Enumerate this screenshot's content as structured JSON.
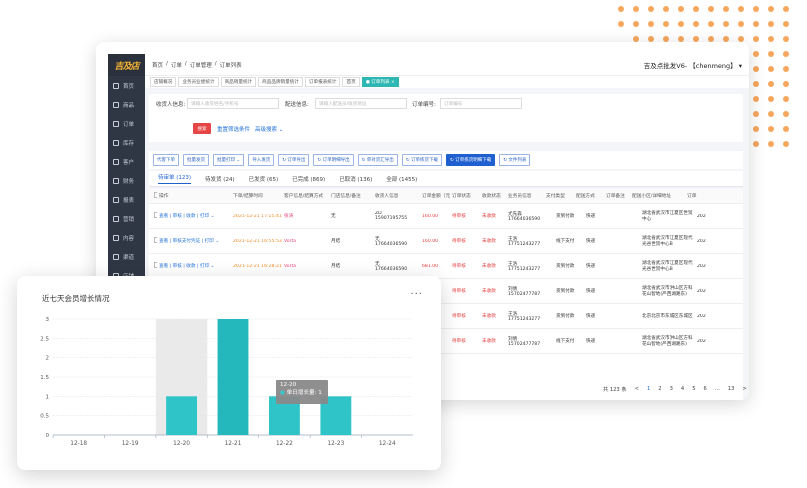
{
  "app": {
    "logo": "吉及店",
    "breadcrumb": [
      "首页",
      "/",
      "订单",
      "/",
      "订单管理",
      "/",
      "订单列表"
    ],
    "user": "吉及点批发V6- 【chenmeng】 ▾"
  },
  "sidebar": [
    "首页",
    "商品",
    "订单",
    "库存",
    "客户",
    "财务",
    "报表",
    "营销",
    "内容",
    "渠道",
    "店铺",
    "系统"
  ],
  "tabs": [
    {
      "label": "店铺概况",
      "on": false
    },
    {
      "label": "业务员业绩统计",
      "on": false
    },
    {
      "label": "商品销量统计",
      "on": false
    },
    {
      "label": "商品品牌销量统计",
      "on": false
    },
    {
      "label": "订单报表统计",
      "on": false
    },
    {
      "label": "首页",
      "on": false
    },
    {
      "label": "● 订单列表 ×",
      "on": true
    }
  ],
  "filters": {
    "label1": "收货人信息:",
    "ph1": "请输入收货姓名/手机号",
    "label2": "配送信息:",
    "ph2": "请输入配送员/收货地址",
    "label3": "订单编号:",
    "ph3": "订单编号",
    "search": "搜索",
    "reset": "重置筛选条件",
    "advanced": "高级搜索 ⌄"
  },
  "toolbar": [
    {
      "label": "代客下单",
      "primary": false
    },
    {
      "label": "批量发货",
      "primary": false
    },
    {
      "label": "批量打印 ⌄",
      "primary": false
    },
    {
      "label": "导入发货",
      "primary": false
    },
    {
      "label": "↻ 订单导出",
      "primary": false
    },
    {
      "label": "↻ 订单明细导出",
      "primary": false
    },
    {
      "label": "↻ 单对货汇导出",
      "primary": false
    },
    {
      "label": "↻ 订单拣货下载",
      "primary": false
    },
    {
      "label": "↻ 订单拣货明细下载",
      "primary": true
    },
    {
      "label": "↻ 文件列表",
      "primary": false
    }
  ],
  "status_tabs": [
    {
      "label": "待审单 (123)",
      "on": true
    },
    {
      "label": "待发货 (24)",
      "on": false
    },
    {
      "label": "已发货 (65)",
      "on": false
    },
    {
      "label": "已完成 (869)",
      "on": false
    },
    {
      "label": "已取消 (136)",
      "on": false
    },
    {
      "label": "全部 (1455)",
      "on": false
    }
  ],
  "table": {
    "headers": [
      "操作",
      "下单/结算时间",
      "客户信息/结算方式",
      "门店信息/备注",
      "收货人信息",
      "订单金额（元）",
      "订单状态",
      "收款状态",
      "业务员信息",
      "支付类型",
      "配送方式",
      "订单备注",
      "配送小区/详细地址",
      "订单"
    ],
    "rows": [
      {
        "ops": "查看 | 审核 | 收款 | 打印 ⌄",
        "time": "2021-12-21 17:15:41",
        "cust": "张涛",
        "pay": "无",
        "rcv": "ZD",
        "phone": "15907195755",
        "amt": "160.00",
        "st": "待审核",
        "pst": "未收款",
        "sales": "尤先森",
        "sp": "17664036590",
        "ptype": "货到付款",
        "ship": "快递",
        "addr": "湖北省武汉市江夏区世贸中心",
        "no": "202"
      },
      {
        "ops": "查看 | 审核支付凭证 | 打印 ⌄",
        "time": "2021-12-21 16:55:53",
        "cust": "Vorta",
        "pay": "月结",
        "rcv": "无",
        "phone": "17664036590",
        "amt": "160.00",
        "st": "待审核",
        "pst": "未收款",
        "sales": "王洛",
        "sp": "17751243277",
        "ptype": "线下支付",
        "ship": "快递",
        "addr": "湖北省武汉市江夏区现代光谷世贸中心B",
        "no": "202"
      },
      {
        "ops": "查看 | 审核 | 收款 | 打印 ⌄",
        "time": "2021-12-21 16:28:21",
        "cust": "Vorta",
        "pay": "月结",
        "rcv": "无",
        "phone": "17664036590",
        "amt": "681.00",
        "st": "待审核",
        "pst": "未收款",
        "sales": "王洛",
        "sp": "17751243277",
        "ptype": "货到付款",
        "ship": "快递",
        "addr": "湖北省武汉市江夏区现代光谷世贸中心B",
        "no": "202"
      },
      {
        "ops": "",
        "time": "",
        "cust": "",
        "pay": "",
        "rcv": "",
        "phone": "",
        "amt": "0.00",
        "st": "待审核",
        "pst": "未收款",
        "sales": "刘倩",
        "sp": "15702477787",
        "ptype": "货到付款",
        "ship": "快递",
        "addr": "湖北省武汉市洪山区方科花山智地(严西湖路东)",
        "no": "202"
      },
      {
        "ops": "",
        "time": "",
        "cust": "",
        "pay": "",
        "rcv": "---",
        "phone": "",
        "amt": "199.20",
        "st": "待审核",
        "pst": "未收款",
        "sales": "王洛",
        "sp": "17751243277",
        "ptype": "货到付款",
        "ship": "快递",
        "addr": "北京北京市东城区东城区",
        "no": "202"
      },
      {
        "ops": "",
        "time": "",
        "cust": "",
        "pay": "",
        "rcv": "---",
        "phone": "",
        "amt": "0.00",
        "st": "待审核",
        "pst": "未收款",
        "sales": "刘倩",
        "sp": "15702477787",
        "ptype": "线下支付",
        "ship": "快递",
        "addr": "湖北省武汉市洪山区方科花山智地(严西湖路东)",
        "no": "202"
      }
    ],
    "pager": [
      "共 123 条",
      "<",
      "1",
      "2",
      "3",
      "4",
      "5",
      "6",
      "...",
      "13",
      ">"
    ]
  },
  "chart_card": {
    "title": "近七天会员增长情况",
    "more": "···"
  },
  "tooltip": {
    "date": "12-20",
    "label": "单日增长量: 1"
  },
  "chart_data": {
    "type": "bar",
    "title": "近七天会员增长情况",
    "categories": [
      "12-18",
      "12-19",
      "12-20",
      "12-21",
      "12-22",
      "12-23",
      "12-24"
    ],
    "values": [
      0,
      0,
      1,
      3,
      1,
      1,
      0
    ],
    "ylim": [
      0,
      3
    ],
    "yticks": [
      "0",
      "0.5",
      "1",
      "1.5",
      "2",
      "2.5",
      "3"
    ],
    "grid": true,
    "colors": {
      "bar": "#2ec4c8",
      "bar_active": "#24b8bc",
      "hover_band": "#e5e5e5"
    }
  }
}
